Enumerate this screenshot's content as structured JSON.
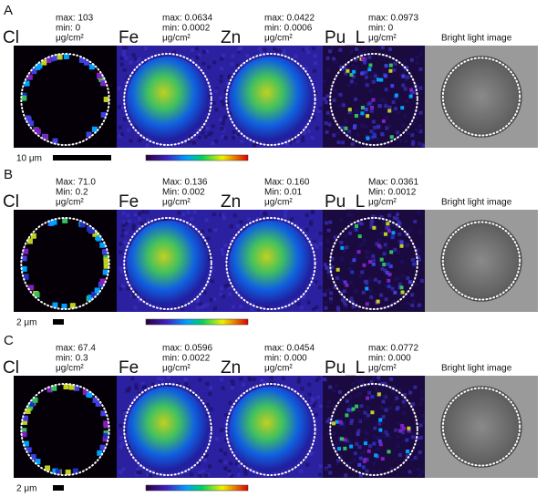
{
  "panels": [
    {
      "label": "A",
      "scale_bar": "10 μm",
      "bright_label": "Bright light image",
      "maps": [
        {
          "element": "Cl",
          "max": "max: 103",
          "min": "min: 0",
          "unit": "μg/cm²"
        },
        {
          "element": "Fe",
          "max": "max: 0.0634",
          "min": "min: 0.0002",
          "unit": "μg/cm²"
        },
        {
          "element": "Zn",
          "max": "max: 0.0422",
          "min": "min: 0.0006",
          "unit": "μg/cm²"
        },
        {
          "element": "Pu_L",
          "max": "max: 0.0973",
          "min": "min: 0",
          "unit": "μg/cm²"
        }
      ]
    },
    {
      "label": "B",
      "scale_bar": "2 μm",
      "bright_label": "Bright light image",
      "maps": [
        {
          "element": "Cl",
          "max": "Max: 71.0",
          "min": "Min: 0.2",
          "unit": "μg/cm²"
        },
        {
          "element": "Fe",
          "max": "Max: 0.136",
          "min": "Min: 0.002",
          "unit": "μg/cm²"
        },
        {
          "element": "Zn",
          "max": "Max: 0.160",
          "min": "Min: 0.01",
          "unit": "μg/cm²"
        },
        {
          "element": "Pu_L",
          "max": "Max: 0.0361",
          "min": "Min: 0.0012",
          "unit": "μg/cm²"
        }
      ]
    },
    {
      "label": "C",
      "scale_bar": "2 μm",
      "bright_label": "Bright light image",
      "maps": [
        {
          "element": "Cl",
          "max": "max: 67.4",
          "min": "min: 0.3",
          "unit": "μg/cm²"
        },
        {
          "element": "Fe",
          "max": "max: 0.0596",
          "min": "min: 0.0022",
          "unit": "μg/cm²"
        },
        {
          "element": "Zn",
          "max": "max: 0.0454",
          "min": "min: 0.000",
          "unit": "μg/cm²"
        },
        {
          "element": "Pu_L",
          "max": "max: 0.0772",
          "min": "min: 0.000",
          "unit": "μg/cm²"
        }
      ]
    }
  ]
}
